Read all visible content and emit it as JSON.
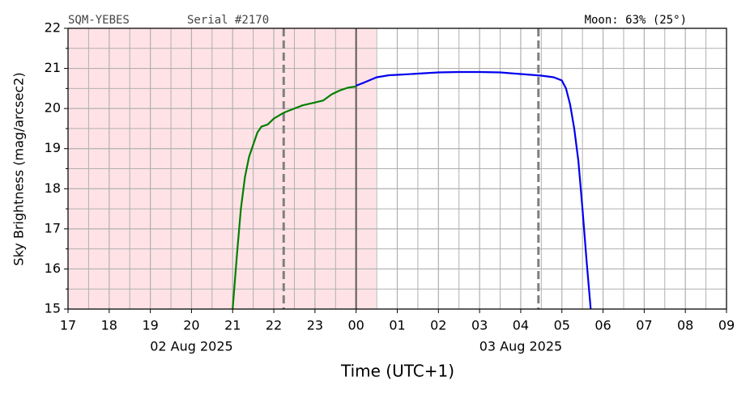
{
  "chart_data": {
    "type": "line",
    "header_left": "SQM-YEBES",
    "header_mid": "Serial #2170",
    "header_right": "Moon: 63% (25°)",
    "ylabel": "Sky Brightness (mag/arcsec2)",
    "xlabel": "Time (UTC+1)",
    "xlim": [
      17,
      33
    ],
    "ylim": [
      15,
      22
    ],
    "xticks": [
      17,
      18,
      19,
      20,
      21,
      22,
      23,
      {
        "value": 24,
        "label": "00"
      },
      {
        "value": 25,
        "label": "01"
      },
      {
        "value": 26,
        "label": "02"
      },
      {
        "value": 27,
        "label": "03"
      },
      {
        "value": 28,
        "label": "04"
      },
      {
        "value": 29,
        "label": "05"
      },
      {
        "value": 30,
        "label": "06"
      },
      {
        "value": 31,
        "label": "07"
      },
      {
        "value": 32,
        "label": "08"
      },
      {
        "value": 33,
        "label": "09"
      }
    ],
    "xminorticks": [
      17.5,
      18.5,
      19.5,
      20.5,
      21.5,
      22.5,
      23.5,
      24.5,
      25.5,
      26.5,
      27.5,
      28.5,
      29.5,
      30.5,
      31.5,
      32.5
    ],
    "yticks": [
      15,
      16,
      17,
      18,
      19,
      20,
      21,
      22
    ],
    "yminorticks": [
      15.5,
      16.5,
      17.5,
      18.5,
      19.5,
      20.5,
      21.5
    ],
    "xdatelabels": [
      {
        "value": 20,
        "label": "02 Aug 2025"
      },
      {
        "value": 28,
        "label": "03 Aug 2025"
      }
    ],
    "grid": true,
    "shade": {
      "xlim": [
        17,
        24.48
      ],
      "color": "#ffe2e6"
    },
    "vlines": [
      {
        "x": 22.24,
        "dashed": true,
        "color": "#7f7f7f"
      },
      {
        "x": 24.0,
        "dashed": false,
        "color": "#5a5a5a"
      },
      {
        "x": 28.43,
        "dashed": true,
        "color": "#7f7f7f"
      }
    ],
    "series": [
      {
        "color": "#008000",
        "x": [
          21.0,
          21.1,
          21.2,
          21.3,
          21.4,
          21.5,
          21.6,
          21.7,
          21.85,
          22.0,
          22.25,
          22.5,
          22.7,
          23.0,
          23.2,
          23.4,
          23.6,
          23.8,
          24.0
        ],
        "values": [
          15.0,
          16.3,
          17.5,
          18.3,
          18.8,
          19.1,
          19.4,
          19.55,
          19.6,
          19.75,
          19.9,
          20.0,
          20.08,
          20.15,
          20.2,
          20.35,
          20.45,
          20.52,
          20.55
        ]
      },
      {
        "color": "#0000ee",
        "x": [
          24.0,
          24.2,
          24.5,
          24.8,
          25.0,
          25.5,
          26.0,
          26.5,
          27.0,
          27.5,
          28.0,
          28.5,
          28.8,
          29.0,
          29.1,
          29.2,
          29.3,
          29.4,
          29.5,
          29.6,
          29.7
        ],
        "values": [
          20.57,
          20.65,
          20.78,
          20.83,
          20.84,
          20.87,
          20.9,
          20.91,
          20.91,
          20.9,
          20.86,
          20.82,
          20.78,
          20.7,
          20.5,
          20.1,
          19.5,
          18.7,
          17.5,
          16.2,
          15.0
        ]
      }
    ]
  }
}
